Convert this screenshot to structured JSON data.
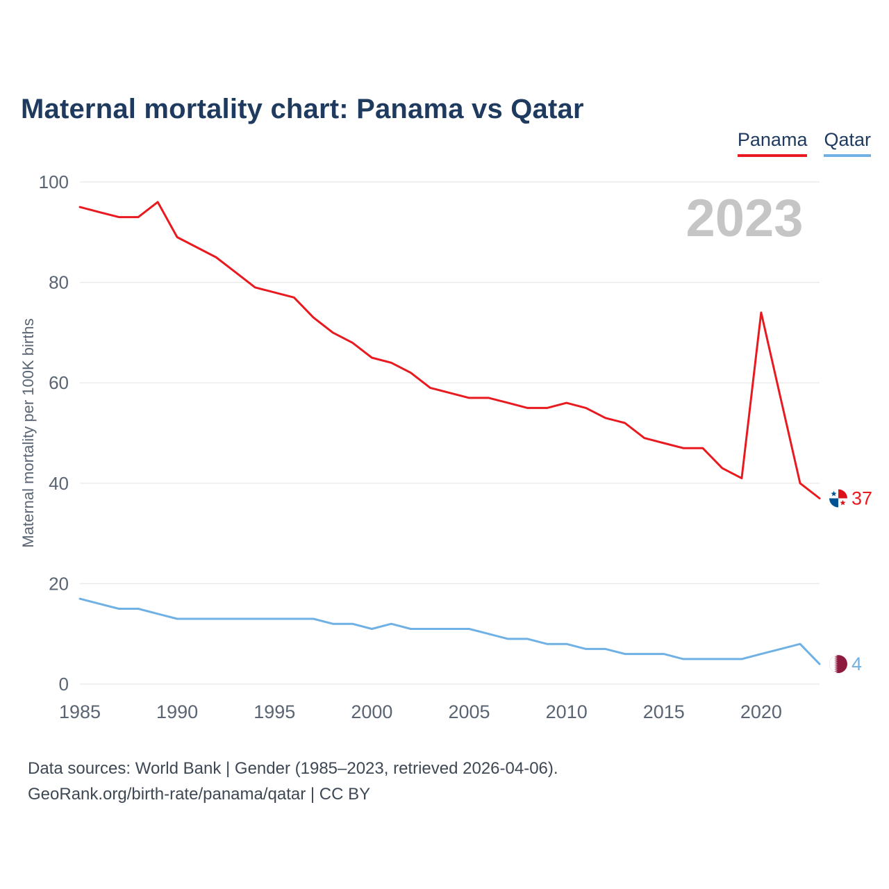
{
  "page": {
    "title": "Maternal mortality chart: Panama vs Qatar",
    "footer_line1": "Data sources: World Bank | Gender (1985–2023, retrieved 2026-04-06).",
    "footer_line2": "GeoRank.org/birth-rate/panama/qatar | CC BY"
  },
  "legend": {
    "items": [
      {
        "label": "Panama",
        "color": "#e8191f"
      },
      {
        "label": "Qatar",
        "color": "#6fb1e4"
      }
    ]
  },
  "chart_data": {
    "type": "line",
    "title": "Maternal mortality chart: Panama vs Qatar",
    "xlabel": "",
    "ylabel": "Maternal mortality per 100K births",
    "watermark": "2023",
    "grid": true,
    "legend_position": "top-right",
    "ylim": [
      0,
      100
    ],
    "yticks": [
      0,
      20,
      40,
      60,
      80,
      100
    ],
    "xticks": [
      1985,
      1990,
      1995,
      2000,
      2005,
      2010,
      2015,
      2020
    ],
    "x": [
      1985,
      1986,
      1987,
      1988,
      1989,
      1990,
      1991,
      1992,
      1993,
      1994,
      1995,
      1996,
      1997,
      1998,
      1999,
      2000,
      2001,
      2002,
      2003,
      2004,
      2005,
      2006,
      2007,
      2008,
      2009,
      2010,
      2011,
      2012,
      2013,
      2014,
      2015,
      2016,
      2017,
      2018,
      2019,
      2020,
      2021,
      2022,
      2023
    ],
    "series": [
      {
        "name": "Panama",
        "color": "#e8191f",
        "end_label": "37",
        "values": [
          95,
          94,
          93,
          93,
          96,
          89,
          87,
          85,
          82,
          79,
          78,
          77,
          73,
          70,
          68,
          65,
          64,
          62,
          59,
          58,
          57,
          57,
          56,
          55,
          55,
          56,
          55,
          53,
          52,
          49,
          48,
          47,
          47,
          43,
          41,
          74,
          57,
          40,
          37
        ]
      },
      {
        "name": "Qatar",
        "color": "#6fb1e4",
        "end_label": "4",
        "values": [
          17,
          16,
          15,
          15,
          14,
          13,
          13,
          13,
          13,
          13,
          13,
          13,
          13,
          12,
          12,
          11,
          12,
          11,
          11,
          11,
          11,
          10,
          9,
          9,
          8,
          8,
          7,
          7,
          6,
          6,
          6,
          5,
          5,
          5,
          5,
          6,
          7,
          8,
          4
        ]
      }
    ],
    "flag_colors": {
      "panama_red": "#da121a",
      "panama_blue": "#005293",
      "qatar_maroon": "#8d1b3d"
    },
    "axis_text_color": "#5a6472",
    "grid_color": "#e7e7e7",
    "watermark_color": "#c5c5c5"
  }
}
